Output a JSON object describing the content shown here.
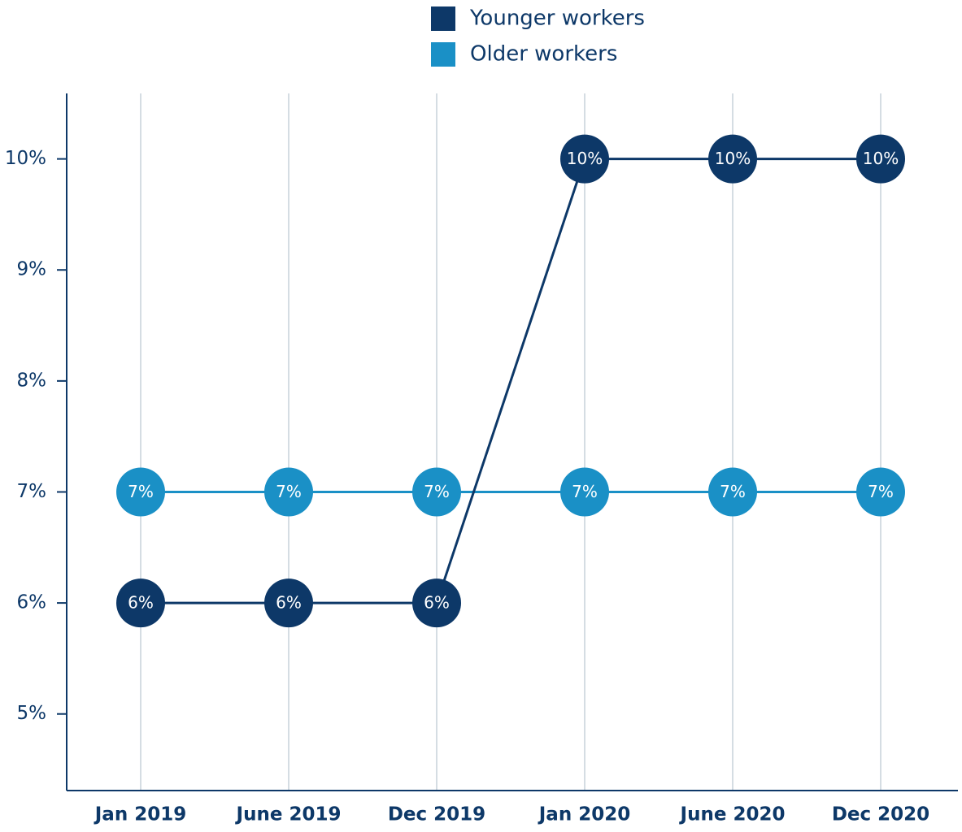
{
  "chart_data": {
    "type": "line",
    "categories": [
      "Jan 2019",
      "June 2019",
      "Dec 2019",
      "Jan 2020",
      "June 2020",
      "Dec 2020"
    ],
    "series": [
      {
        "name": "Younger workers",
        "color": "#0d3868",
        "values": [
          6,
          6,
          6,
          10,
          10,
          10
        ],
        "value_labels": [
          "6%",
          "6%",
          "6%",
          "10%",
          "10%",
          "10%"
        ]
      },
      {
        "name": "Older workers",
        "color": "#1a90c6",
        "values": [
          7,
          7,
          7,
          7,
          7,
          7
        ],
        "value_labels": [
          "7%",
          "7%",
          "7%",
          "7%",
          "7%",
          "7%"
        ]
      }
    ],
    "ylim": [
      4.31,
      10.59
    ],
    "yticks": [
      {
        "value": 5,
        "label": "5%"
      },
      {
        "value": 6,
        "label": "6%"
      },
      {
        "value": 7,
        "label": "7%"
      },
      {
        "value": 8,
        "label": "8%"
      },
      {
        "value": 9,
        "label": "9%"
      },
      {
        "value": 10,
        "label": "10%"
      }
    ],
    "grid": true
  }
}
